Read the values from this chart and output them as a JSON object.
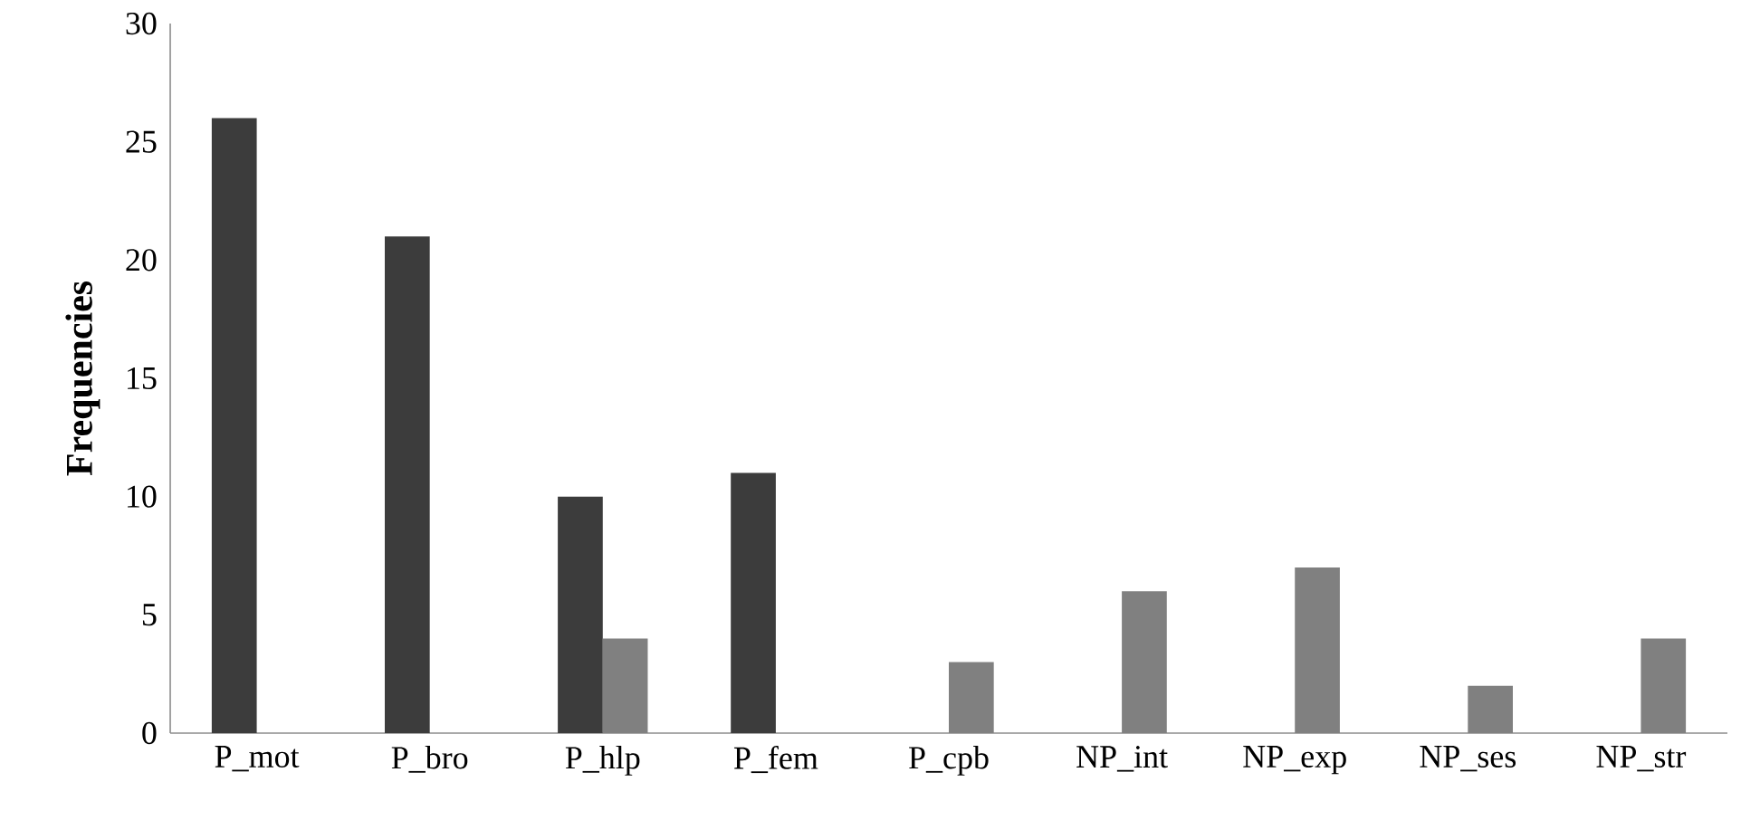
{
  "chart_data": {
    "type": "bar",
    "ylabel": "**Frequencies**",
    "categories": [
      "P_mot",
      "P_bro",
      "P_hlp",
      "P_fem",
      "P_cpb",
      "NP_int",
      "NP_exp",
      "NP_ses",
      "NP_str"
    ],
    "series": [
      {
        "color": "#3c3c3c",
        "values": [
          26,
          21,
          10,
          11,
          null,
          null,
          null,
          null,
          null
        ]
      },
      {
        "color": "#808080",
        "values": [
          null,
          null,
          4,
          null,
          3,
          6,
          7,
          2,
          4
        ]
      }
    ],
    "ylim": [
      0,
      30
    ],
    "yticks": [
      0,
      5,
      10,
      15,
      20,
      25,
      30
    ],
    "grid": false
  }
}
